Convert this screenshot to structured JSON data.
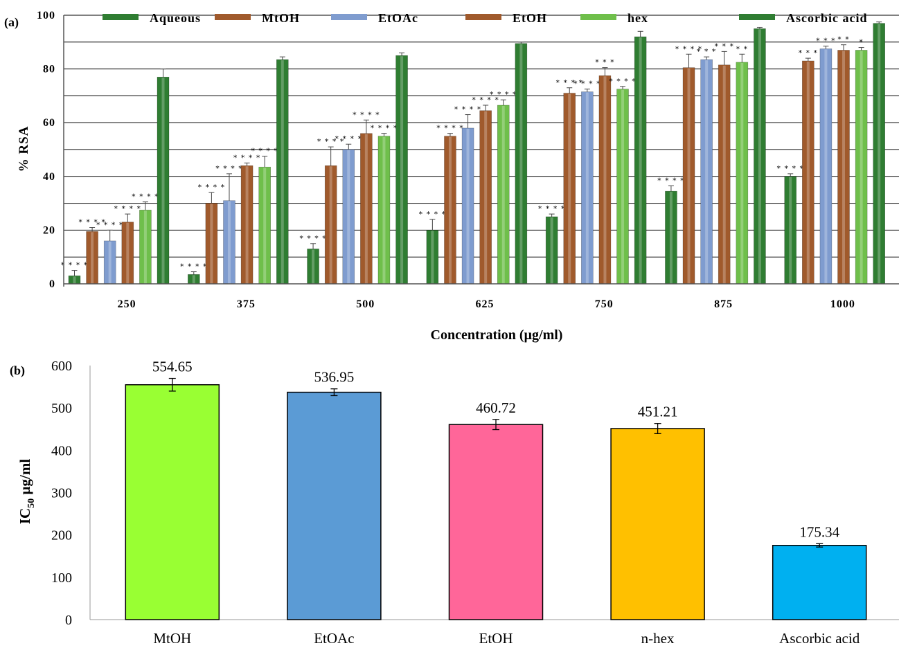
{
  "chart_data": [
    {
      "panel": "(a)",
      "type": "bar",
      "xlabel": "Concentration (µg/ml)",
      "ylabel": "% RSA",
      "ylim": [
        0,
        100
      ],
      "yticks": [
        "0",
        "20",
        "40",
        "60",
        "80",
        "100"
      ],
      "categories": [
        "250",
        "375",
        "500",
        "625",
        "750",
        "875",
        "1000"
      ],
      "grid": "horizontal",
      "legend": "top",
      "series": [
        {
          "name": "Aqueous",
          "color": "#2f7d32",
          "values": [
            3,
            3.5,
            13,
            20,
            25,
            34.5,
            40
          ],
          "errors": [
            2,
            1,
            2,
            4,
            1,
            2,
            1
          ],
          "stars": [
            "* * * *",
            "* * * *",
            "* * * *",
            "* * * *",
            "* * * *",
            "* * * *",
            "* * * *"
          ]
        },
        {
          "name": "MtOH",
          "color": "#a05a2c",
          "values": [
            19.5,
            30,
            44,
            55,
            71,
            80.5,
            83
          ],
          "errors": [
            1.5,
            4,
            7,
            1,
            2,
            5,
            1
          ],
          "stars": [
            "* * * *",
            "* * * *",
            "* * * *",
            "* * * *",
            "* * * *",
            "* * * *",
            "* * *"
          ]
        },
        {
          "name": "EtOAc",
          "color": "#7f9ccf",
          "values": [
            16,
            31,
            50,
            58,
            71.5,
            83.5,
            87.5
          ],
          "errors": [
            4,
            10,
            2,
            5,
            1,
            1,
            1
          ],
          "stars": [
            "* * * *",
            "* * * *",
            "* * * *",
            "* * * *",
            "* * * *",
            "* * *",
            "* * *"
          ]
        },
        {
          "name": "EtOH",
          "color": "#a05a2c",
          "values": [
            23,
            44,
            56,
            64.5,
            77.5,
            81.5,
            87
          ],
          "errors": [
            3,
            1,
            5,
            2,
            3,
            5,
            2
          ],
          "stars": [
            "* * * *",
            "* * * *",
            "* * * *",
            "* * * *",
            "* * *",
            "* * *",
            "* *"
          ]
        },
        {
          "name": "hex",
          "color": "#6fbf4b",
          "values": [
            27.5,
            43.5,
            55,
            66.5,
            72.5,
            82.5,
            87
          ],
          "errors": [
            3,
            4,
            1,
            2,
            1,
            3,
            1
          ],
          "stars": [
            "* * * *",
            "* * * *",
            "* * * *",
            "* * * *",
            "* * * *",
            "* *",
            "*"
          ]
        },
        {
          "name": "Ascorbic acid",
          "color": "#2f7d32",
          "values": [
            77,
            83.5,
            85,
            89.5,
            92,
            95,
            97
          ],
          "errors": [
            3,
            1,
            1,
            0.5,
            2,
            0.5,
            0.5
          ],
          "stars": [
            "",
            "",
            "",
            "",
            "",
            "",
            ""
          ]
        }
      ]
    },
    {
      "panel": "(b)",
      "type": "bar",
      "xlabel": "",
      "ylabel": "IC",
      "ylabel_sub": "50",
      "ylabel_rest": " µg/ml",
      "ylim": [
        0,
        600
      ],
      "yticks": [
        "0",
        "100",
        "200",
        "300",
        "400",
        "500",
        "600"
      ],
      "categories": [
        "MtOH",
        "EtOAc",
        "EtOH",
        "n-hex",
        "Ascorbic acid"
      ],
      "values": [
        554.65,
        536.95,
        460.72,
        451.21,
        175.34
      ],
      "value_labels": [
        "554.65",
        "536.95",
        "460.72",
        "451.21",
        "175.34"
      ],
      "errors": [
        15,
        8,
        12,
        12,
        4
      ],
      "colors": [
        "#99ff33",
        "#5b9bd5",
        "#ff6699",
        "#ffc000",
        "#00b0f0"
      ]
    }
  ]
}
